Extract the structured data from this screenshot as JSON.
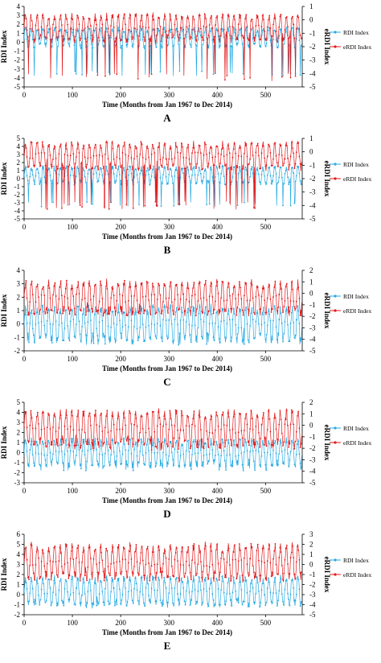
{
  "chart_data": [
    {
      "type": "line",
      "letter": "A",
      "xlabel": "Time (Months from Jan 1967 to Dec 2014)",
      "ylabel": "RDI Index",
      "y2label": "eRDI Index",
      "xlim": [
        0,
        576
      ],
      "xticks": [
        0,
        100,
        200,
        300,
        400,
        500
      ],
      "ylim": [
        -5,
        4
      ],
      "yticks": [
        -5,
        -4,
        -3,
        -2,
        -1,
        0,
        1,
        2,
        3,
        4
      ],
      "y2lim": [
        -5,
        1
      ],
      "y2ticks": [
        -5,
        -4,
        -3,
        -2,
        -1,
        0,
        1
      ],
      "legend": "right",
      "series": [
        {
          "name": "RDI Index",
          "axis": "left",
          "color": "#29abe2",
          "base": 0.5,
          "amp": 1.0,
          "spike": -3.5,
          "spikeEvery": 8
        },
        {
          "name": "eRDI Index",
          "axis": "right",
          "color": "#e31a1c",
          "base": -0.6,
          "amp": 0.9,
          "spike": -4.3,
          "spikeEvery": 8
        }
      ]
    },
    {
      "type": "line",
      "letter": "B",
      "xlabel": "Time (Months from Jan 1967 to Dec 2014)",
      "ylabel": "RDI Index",
      "y2label": "eRDI Index",
      "xlim": [
        0,
        576
      ],
      "xticks": [
        0,
        100,
        200,
        300,
        400,
        500
      ],
      "ylim": [
        -5,
        5
      ],
      "yticks": [
        -5,
        -4,
        -3,
        -2,
        -1,
        0,
        1,
        2,
        3,
        4,
        5
      ],
      "y2lim": [
        -5,
        1
      ],
      "y2ticks": [
        -5,
        -4,
        -3,
        -2,
        -1,
        0,
        1
      ],
      "legend": "right",
      "series": [
        {
          "name": "RDI Index",
          "axis": "left",
          "color": "#29abe2",
          "base": 0.4,
          "amp": 1.0,
          "spike": -3.2,
          "spikeEvery": 9
        },
        {
          "name": "eRDI Index",
          "axis": "right",
          "color": "#e31a1c",
          "base": -0.3,
          "amp": 0.9,
          "spike": -4.0,
          "spikeEvery": 9
        }
      ]
    },
    {
      "type": "line",
      "letter": "C",
      "xlabel": "Time (Months from Jan 1967 to Dec 2014)",
      "ylabel": "RDI Index",
      "y2label": "eRDI Index",
      "xlim": [
        0,
        576
      ],
      "xticks": [
        0,
        100,
        200,
        300,
        400,
        500
      ],
      "ylim": [
        -2,
        4
      ],
      "yticks": [
        -2,
        -1,
        0,
        1,
        2,
        3,
        4
      ],
      "y2lim": [
        -5,
        2
      ],
      "y2ticks": [
        -5,
        -4,
        -3,
        -2,
        -1,
        0,
        1,
        2
      ],
      "legend": "right",
      "series": [
        {
          "name": "RDI Index",
          "axis": "left",
          "color": "#29abe2",
          "base": 0.0,
          "amp": 1.2,
          "spike": -1.3,
          "spikeEvery": 6
        },
        {
          "name": "eRDI Index",
          "axis": "right",
          "color": "#e31a1c",
          "base": -0.4,
          "amp": 1.3,
          "spike": -1.7,
          "spikeEvery": 6
        }
      ]
    },
    {
      "type": "line",
      "letter": "D",
      "xlabel": "Time (Months from Jan 1967 to Dec 2014)",
      "ylabel": "RDI Index",
      "y2label": "eRDI Index",
      "xlim": [
        0,
        576
      ],
      "xticks": [
        0,
        100,
        200,
        300,
        400,
        500
      ],
      "ylim": [
        -3,
        5
      ],
      "yticks": [
        -3,
        -2,
        -1,
        0,
        1,
        2,
        3,
        4,
        5
      ],
      "y2lim": [
        -5,
        2
      ],
      "y2ticks": [
        -5,
        -4,
        -3,
        -2,
        -1,
        0,
        1,
        2
      ],
      "legend": "right",
      "series": [
        {
          "name": "RDI Index",
          "axis": "left",
          "color": "#29abe2",
          "base": 0.0,
          "amp": 1.2,
          "spike": -1.5,
          "spikeEvery": 6
        },
        {
          "name": "eRDI Index",
          "axis": "right",
          "color": "#e31a1c",
          "base": -0.3,
          "amp": 1.4,
          "spike": -1.9,
          "spikeEvery": 6
        }
      ]
    },
    {
      "type": "line",
      "letter": "E",
      "xlabel": "Time (Months from Jan 1967 to Dec 2014)",
      "ylabel": "RDI Index",
      "y2label": "eRDI Index",
      "xlim": [
        0,
        576
      ],
      "xticks": [
        0,
        100,
        200,
        300,
        400,
        500
      ],
      "ylim": [
        -2,
        6
      ],
      "yticks": [
        -2,
        -1,
        0,
        1,
        2,
        3,
        4,
        5,
        6
      ],
      "y2lim": [
        -5,
        3
      ],
      "y2ticks": [
        -5,
        -4,
        -3,
        -2,
        -1,
        0,
        1,
        2,
        3
      ],
      "legend": "right",
      "series": [
        {
          "name": "RDI Index",
          "axis": "left",
          "color": "#29abe2",
          "base": 0.3,
          "amp": 1.3,
          "spike": -0.8,
          "spikeEvery": 6
        },
        {
          "name": "eRDI Index",
          "axis": "right",
          "color": "#e31a1c",
          "base": 0.2,
          "amp": 1.6,
          "spike": -1.0,
          "spikeEvery": 6
        }
      ]
    }
  ]
}
